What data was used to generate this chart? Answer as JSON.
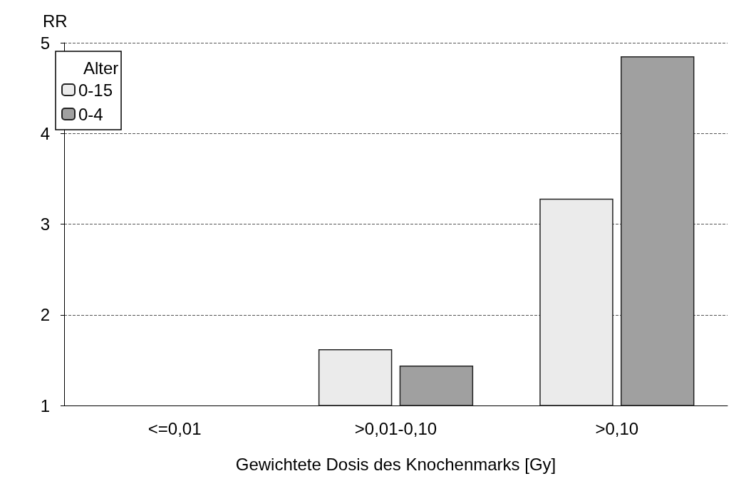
{
  "chart_data": {
    "type": "bar",
    "ylabel": "RR",
    "xlabel": "Gewichtete Dosis des Knochenmarks [Gy]",
    "legend_title": "Alter",
    "categories": [
      "<=0,01",
      ">0,01-0,10",
      ">0,10"
    ],
    "series": [
      {
        "name": "0-15",
        "color": "#ebebeb",
        "values": [
          1,
          1.62,
          3.28
        ]
      },
      {
        "name": "0-4",
        "color": "#a0a0a0",
        "values": [
          1,
          1.44,
          4.85
        ]
      }
    ],
    "ylim": [
      1,
      5
    ],
    "yticks": [
      1,
      2,
      3,
      4,
      5
    ],
    "grid": "y",
    "legend": "top left"
  }
}
